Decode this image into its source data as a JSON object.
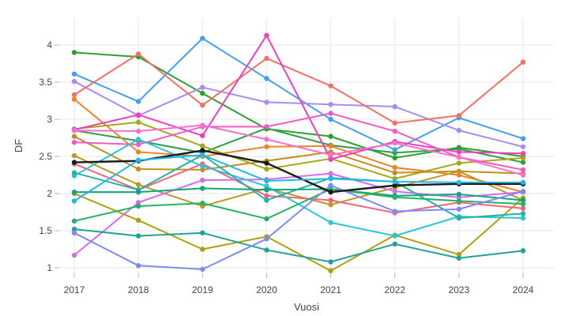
{
  "chart": {
    "x_axis_title": "Vuosi",
    "y_axis_title": "DF",
    "x_tick_labels": [
      "2017",
      "2018",
      "2019",
      "2020",
      "2021",
      "2022",
      "2023",
      "2024"
    ],
    "y_tick_labels": [
      "1",
      "1.5",
      "2",
      "2.5",
      "3",
      "3.5",
      "4"
    ]
  },
  "colors": {
    "background": "#ffffff",
    "gridline": "#e6e6e6",
    "tick_mark": "#b3b3b3",
    "tick_text": "#444444"
  },
  "chart_data": {
    "type": "line",
    "title": "",
    "xlabel": "Vuosi",
    "ylabel": "DF",
    "x": [
      2017,
      2018,
      2019,
      2020,
      2021,
      2022,
      2023,
      2024
    ],
    "y_ticks": [
      1,
      1.5,
      2,
      2.5,
      3,
      3.5,
      4
    ],
    "ylim": [
      0.93,
      4.36
    ],
    "grid": true,
    "legend_position": "none",
    "marker_mode": "lines+markers",
    "series": [
      {
        "name": "forest-green",
        "color": "#2CA02C",
        "values": [
          3.9,
          3.84,
          3.35,
          2.87,
          2.77,
          2.48,
          2.62,
          2.5
        ]
      },
      {
        "name": "green",
        "color": "#2E9E44",
        "values": [
          2.85,
          2.71,
          2.55,
          2.88,
          2.65,
          2.55,
          2.6,
          2.42
        ]
      },
      {
        "name": "blue",
        "color": "#41A0F1",
        "values": [
          3.61,
          3.24,
          4.09,
          3.55,
          3.0,
          2.59,
          3.02,
          2.74
        ]
      },
      {
        "name": "lavender",
        "color": "#A98BF5",
        "values": [
          3.51,
          3.05,
          3.43,
          3.23,
          3.2,
          3.17,
          2.85,
          2.63
        ]
      },
      {
        "name": "salmon",
        "color": "#F47062",
        "values": [
          3.33,
          3.88,
          3.19,
          3.82,
          3.45,
          2.95,
          3.05,
          3.77
        ]
      },
      {
        "name": "orange",
        "color": "#F08228",
        "values": [
          3.27,
          2.56,
          2.5,
          2.63,
          2.64,
          2.35,
          2.25,
          2.02
        ]
      },
      {
        "name": "olive",
        "color": "#A4A918",
        "values": [
          2.87,
          2.96,
          2.64,
          2.33,
          2.47,
          2.2,
          2.41,
          2.48
        ]
      },
      {
        "name": "dark-yellow",
        "color": "#B0A10C",
        "values": [
          2.0,
          1.64,
          1.25,
          1.42,
          0.96,
          1.44,
          1.18,
          1.94
        ]
      },
      {
        "name": "goldenrod",
        "color": "#C28E1E",
        "values": [
          2.77,
          2.33,
          2.32,
          2.44,
          2.56,
          2.28,
          2.3,
          2.27
        ]
      },
      {
        "name": "dark-goldenrod",
        "color": "#BC9A22",
        "values": [
          2.51,
          2.12,
          1.83,
          2.07,
          1.85,
          2.08,
          2.3,
          1.91
        ]
      },
      {
        "name": "magenta",
        "color": "#F23DBE",
        "values": [
          2.86,
          3.06,
          2.78,
          4.13,
          2.46,
          2.7,
          2.56,
          2.54
        ]
      },
      {
        "name": "pink-magenta",
        "color": "#EF5AC8",
        "values": [
          2.69,
          2.66,
          2.9,
          2.9,
          3.08,
          2.84,
          2.49,
          2.32
        ]
      },
      {
        "name": "pink",
        "color": "#F670CE",
        "values": [
          2.85,
          2.84,
          2.92,
          2.73,
          2.52,
          2.68,
          2.49,
          2.25
        ]
      },
      {
        "name": "crimson-pink",
        "color": "#F2647E",
        "values": [
          2.4,
          2.05,
          2.4,
          1.97,
          1.91,
          1.74,
          1.88,
          1.8
        ]
      },
      {
        "name": "orchid",
        "color": "#D36CF0",
        "values": [
          1.17,
          1.88,
          2.18,
          2.19,
          2.27,
          2.03,
          1.95,
          2.02
        ]
      },
      {
        "name": "cyan-2",
        "color": "#2BC4DC",
        "values": [
          2.24,
          2.73,
          2.37,
          2.1,
          1.61,
          1.43,
          1.69,
          1.67
        ]
      },
      {
        "name": "teal-1",
        "color": "#26B2A2",
        "values": [
          2.28,
          2.05,
          2.52,
          1.91,
          2.21,
          2.16,
          1.67,
          1.73
        ]
      },
      {
        "name": "teal-2",
        "color": "#1FA496",
        "values": [
          1.52,
          1.43,
          1.47,
          1.24,
          1.08,
          1.32,
          1.13,
          1.23
        ]
      },
      {
        "name": "sea-green",
        "color": "#12A57B",
        "values": [
          2.02,
          2.02,
          2.07,
          2.05,
          2.06,
          1.97,
          1.99,
          1.91
        ]
      },
      {
        "name": "emerald",
        "color": "#21B366",
        "values": [
          1.63,
          1.83,
          1.87,
          1.66,
          2.06,
          1.95,
          1.9,
          1.86
        ]
      },
      {
        "name": "periwinkle",
        "color": "#8089F8",
        "values": [
          1.47,
          1.03,
          0.98,
          1.39,
          2.11,
          1.76,
          1.79,
          2.03
        ]
      },
      {
        "name": "black-mean",
        "color": "#1A1A1A",
        "values": [
          2.42,
          2.44,
          2.58,
          2.41,
          2.02,
          2.11,
          2.13,
          2.13
        ]
      },
      {
        "name": "cyan-1",
        "color": "#1FB8E8",
        "values": [
          1.9,
          2.45,
          2.52,
          2.17,
          2.2,
          2.16,
          2.15,
          2.15
        ]
      }
    ]
  }
}
